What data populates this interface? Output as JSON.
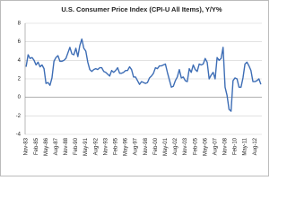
{
  "chart_data": {
    "type": "line",
    "title": "U.S. Consumer Price Index (CPI-U All Items), Y/Y%",
    "categories": [
      "Nov-83",
      null,
      null,
      null,
      null,
      "Feb-85",
      null,
      null,
      null,
      null,
      "May-86",
      null,
      null,
      null,
      null,
      "Aug-87",
      null,
      null,
      null,
      null,
      "Nov-88",
      null,
      null,
      null,
      null,
      "Feb-90",
      null,
      null,
      null,
      null,
      "May-91",
      null,
      null,
      null,
      null,
      "Aug-92",
      null,
      null,
      null,
      null,
      "Nov-93",
      null,
      null,
      null,
      null,
      "Feb-95",
      null,
      null,
      null,
      null,
      "May-96",
      null,
      null,
      null,
      null,
      "Aug-97",
      null,
      null,
      null,
      null,
      "Nov-98",
      null,
      null,
      null,
      null,
      "Feb-00",
      null,
      null,
      null,
      null,
      "May-01",
      null,
      null,
      null,
      null,
      "Aug-02",
      null,
      null,
      null,
      null,
      "Nov-03",
      null,
      null,
      null,
      null,
      "Feb-05",
      null,
      null,
      null,
      null,
      "May-06",
      null,
      null,
      null,
      null,
      "Aug-07",
      null,
      null,
      null,
      null,
      "Nov-08",
      null,
      null,
      null,
      null,
      "Feb-10",
      null,
      null,
      null,
      null,
      "May-11",
      null,
      null,
      null,
      null,
      "Aug-12",
      null,
      null,
      null
    ],
    "series": [
      {
        "name": "CPI-U Y/Y%",
        "color": "#3d6db5",
        "values": [
          3.3,
          4.6,
          4.2,
          4.3,
          4.0,
          3.5,
          3.8,
          3.3,
          3.5,
          3.1,
          1.5,
          1.6,
          1.3,
          2.1,
          3.9,
          4.3,
          4.5,
          3.9,
          3.9,
          4.0,
          4.2,
          4.8,
          5.4,
          4.7,
          4.6,
          5.3,
          4.4,
          5.6,
          6.3,
          5.3,
          5.0,
          3.8,
          3.0,
          2.8,
          3.0,
          3.1,
          3.0,
          3.2,
          3.2,
          2.8,
          2.7,
          2.5,
          2.3,
          2.9,
          2.7,
          2.9,
          3.2,
          2.6,
          2.6,
          2.7,
          2.9,
          2.9,
          3.3,
          3.0,
          2.2,
          2.2,
          1.8,
          1.4,
          1.7,
          1.6,
          1.5,
          1.6,
          2.1,
          2.3,
          2.6,
          3.2,
          3.1,
          3.4,
          3.4,
          3.5,
          3.6,
          2.7,
          1.9,
          1.1,
          1.2,
          1.8,
          2.2,
          3.0,
          2.1,
          2.2,
          1.8,
          1.7,
          3.1,
          2.7,
          3.5,
          3.0,
          2.8,
          3.6,
          3.5,
          3.6,
          4.2,
          3.8,
          2.0,
          2.4,
          2.7,
          2.0,
          4.3,
          4.0,
          4.2,
          5.4,
          1.1,
          0.2,
          -1.3,
          -1.5,
          1.8,
          2.1,
          2.0,
          1.1,
          1.1,
          2.1,
          3.6,
          3.8,
          3.4,
          2.9,
          1.7,
          1.7,
          1.8,
          2.0,
          1.4
        ]
      }
    ],
    "ylim": [
      -4,
      8
    ],
    "yticks": [
      -4,
      -2,
      0,
      2,
      4,
      6,
      8
    ],
    "grid": true
  }
}
